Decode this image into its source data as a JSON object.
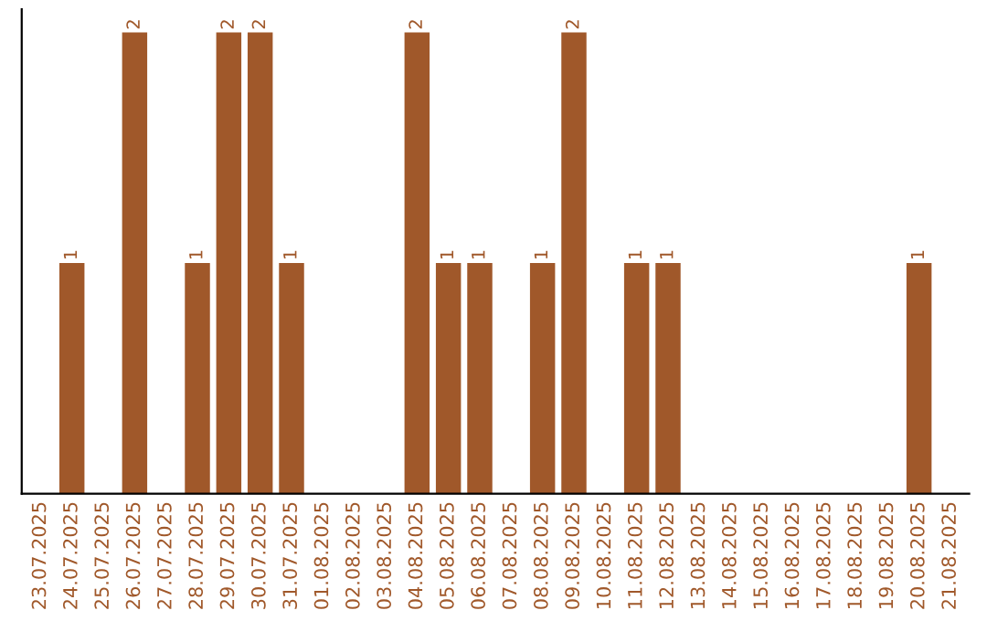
{
  "chart_data": {
    "type": "bar",
    "categories": [
      "23.07.2025",
      "24.07.2025",
      "25.07.2025",
      "26.07.2025",
      "27.07.2025",
      "28.07.2025",
      "29.07.2025",
      "30.07.2025",
      "31.07.2025",
      "01.08.2025",
      "02.08.2025",
      "03.08.2025",
      "04.08.2025",
      "05.08.2025",
      "06.08.2025",
      "07.08.2025",
      "08.08.2025",
      "09.08.2025",
      "10.08.2025",
      "11.08.2025",
      "12.08.2025",
      "13.08.2025",
      "14.08.2025",
      "15.08.2025",
      "16.08.2025",
      "17.08.2025",
      "18.08.2025",
      "19.08.2025",
      "20.08.2025",
      "21.08.2025"
    ],
    "values": [
      0,
      1,
      0,
      2,
      0,
      1,
      2,
      2,
      1,
      0,
      0,
      0,
      2,
      1,
      1,
      0,
      1,
      2,
      0,
      1,
      1,
      0,
      0,
      0,
      0,
      0,
      0,
      0,
      1,
      0
    ],
    "value_labels": [
      null,
      "1",
      null,
      "2",
      null,
      "1",
      "2",
      "2",
      "1",
      null,
      null,
      null,
      "2",
      "1",
      "1",
      null,
      "1",
      "2",
      null,
      "1",
      "1",
      null,
      null,
      null,
      null,
      null,
      null,
      null,
      "1",
      null
    ],
    "color": "#a0582a",
    "tick_labels": "x",
    "grid": false,
    "legend": false
  }
}
